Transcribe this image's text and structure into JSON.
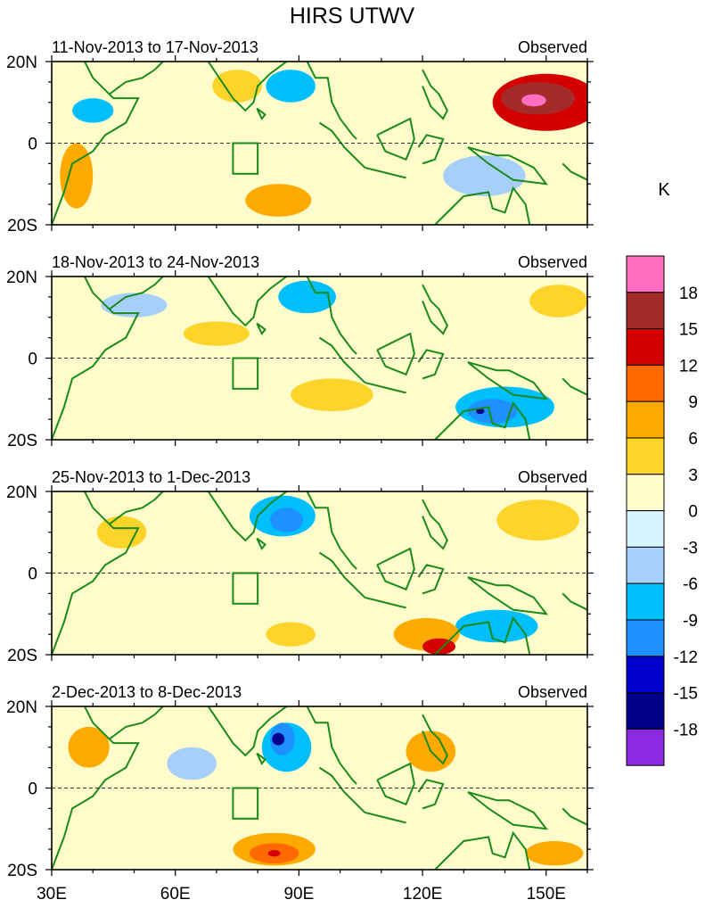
{
  "chart_data": {
    "type": "heatmap",
    "title": "HIRS UTWV",
    "unit_label": "K",
    "x_ticks": [
      "30E",
      "60E",
      "90E",
      "120E",
      "150E"
    ],
    "x_tick_values": [
      30,
      60,
      90,
      120,
      150
    ],
    "xlim": [
      30,
      160
    ],
    "ylim": [
      -20,
      20
    ],
    "y_labels": {
      "top": "20N",
      "mid": "0",
      "bottom": "20S"
    },
    "colorbar": {
      "levels": [
        "18",
        "15",
        "12",
        "9",
        "6",
        "3",
        "0",
        "-3",
        "-6",
        "-9",
        "-12",
        "-15",
        "-18"
      ],
      "colors": [
        "#ff6ec0",
        "#a52a2a",
        "#d40000",
        "#ff6a00",
        "#ffaa00",
        "#ffd42a",
        "#fffccc",
        "#d4f4ff",
        "#a6d0fa",
        "#00bfff",
        "#1e90ff",
        "#0000cd",
        "#00008b",
        "#8a2be2"
      ]
    },
    "boxes": [
      {
        "lon": [
          74,
          80
        ],
        "lat": [
          -7.5,
          0
        ]
      }
    ],
    "panels": [
      {
        "date_range": "11-Nov-2013 to 17-Nov-2013",
        "label": "Observed",
        "features": [
          {
            "lon": 150,
            "lat": 10,
            "rlon": 13,
            "rlat": 7,
            "level": 12
          },
          {
            "lon": 148,
            "lat": 11,
            "rlon": 9,
            "rlat": 4,
            "level": 15
          },
          {
            "lon": 147,
            "lat": 10.5,
            "rlon": 3,
            "rlat": 1.5,
            "level": 18
          },
          {
            "lon": 36,
            "lat": -8,
            "rlon": 4,
            "rlat": 8,
            "level": 6
          },
          {
            "lon": 85,
            "lat": -14,
            "rlon": 8,
            "rlat": 4,
            "level": 6
          },
          {
            "lon": 75,
            "lat": 14,
            "rlon": 6,
            "rlat": 4,
            "level": 3
          },
          {
            "lon": 40,
            "lat": 8,
            "rlon": 5,
            "rlat": 3,
            "level": -6
          },
          {
            "lon": 88,
            "lat": 14,
            "rlon": 6,
            "rlat": 4,
            "level": -6
          },
          {
            "lon": 135,
            "lat": -8,
            "rlon": 10,
            "rlat": 5,
            "level": -3
          }
        ]
      },
      {
        "date_range": "18-Nov-2013 to 24-Nov-2013",
        "label": "Observed",
        "features": [
          {
            "lon": 140,
            "lat": -12,
            "rlon": 12,
            "rlat": 5,
            "level": -6
          },
          {
            "lon": 137,
            "lat": -13,
            "rlon": 6,
            "rlat": 3,
            "level": -9
          },
          {
            "lon": 134,
            "lat": -13,
            "rlon": 1,
            "rlat": 0.7,
            "level": -15
          },
          {
            "lon": 70,
            "lat": 6,
            "rlon": 8,
            "rlat": 3,
            "level": 3
          },
          {
            "lon": 98,
            "lat": -9,
            "rlon": 10,
            "rlat": 4,
            "level": 3
          },
          {
            "lon": 153,
            "lat": 14,
            "rlon": 7,
            "rlat": 4,
            "level": 3
          },
          {
            "lon": 92,
            "lat": 15,
            "rlon": 7,
            "rlat": 4,
            "level": -6
          },
          {
            "lon": 50,
            "lat": 13,
            "rlon": 8,
            "rlat": 3,
            "level": -3
          }
        ]
      },
      {
        "date_range": "25-Nov-2013 to 1-Dec-2013",
        "label": "Observed",
        "features": [
          {
            "lon": 86,
            "lat": 14,
            "rlon": 8,
            "rlat": 5,
            "level": -6
          },
          {
            "lon": 87,
            "lat": 13,
            "rlon": 4,
            "rlat": 3,
            "level": -9
          },
          {
            "lon": 138,
            "lat": -13,
            "rlon": 10,
            "rlat": 4,
            "level": -6
          },
          {
            "lon": 121,
            "lat": -15,
            "rlon": 8,
            "rlat": 4,
            "level": 6
          },
          {
            "lon": 124,
            "lat": -18,
            "rlon": 4,
            "rlat": 2,
            "level": 12
          },
          {
            "lon": 148,
            "lat": 13,
            "rlon": 10,
            "rlat": 5,
            "level": 3
          },
          {
            "lon": 47,
            "lat": 10,
            "rlon": 6,
            "rlat": 4,
            "level": 3
          },
          {
            "lon": 88,
            "lat": -15,
            "rlon": 6,
            "rlat": 3,
            "level": 3
          }
        ]
      },
      {
        "date_range": "2-Dec-2013 to 8-Dec-2013",
        "label": "Observed",
        "features": [
          {
            "lon": 84,
            "lat": -15,
            "rlon": 10,
            "rlat": 4,
            "level": 6
          },
          {
            "lon": 84,
            "lat": -16,
            "rlon": 6,
            "rlat": 2.5,
            "level": 9
          },
          {
            "lon": 84,
            "lat": -16,
            "rlon": 1.5,
            "rlat": 0.8,
            "level": 12
          },
          {
            "lon": 87,
            "lat": 10,
            "rlon": 6,
            "rlat": 6,
            "level": -6
          },
          {
            "lon": 86,
            "lat": 12,
            "rlon": 3,
            "rlat": 4,
            "level": -9
          },
          {
            "lon": 85,
            "lat": 12,
            "rlon": 1.5,
            "rlat": 1.5,
            "level": -15
          },
          {
            "lon": 39,
            "lat": 10,
            "rlon": 5,
            "rlat": 5,
            "level": 6
          },
          {
            "lon": 122,
            "lat": 9,
            "rlon": 6,
            "rlat": 5,
            "level": 6
          },
          {
            "lon": 152,
            "lat": -16,
            "rlon": 7,
            "rlat": 3,
            "level": 6
          },
          {
            "lon": 64,
            "lat": 6,
            "rlon": 6,
            "rlat": 4,
            "level": -3
          }
        ]
      }
    ]
  }
}
